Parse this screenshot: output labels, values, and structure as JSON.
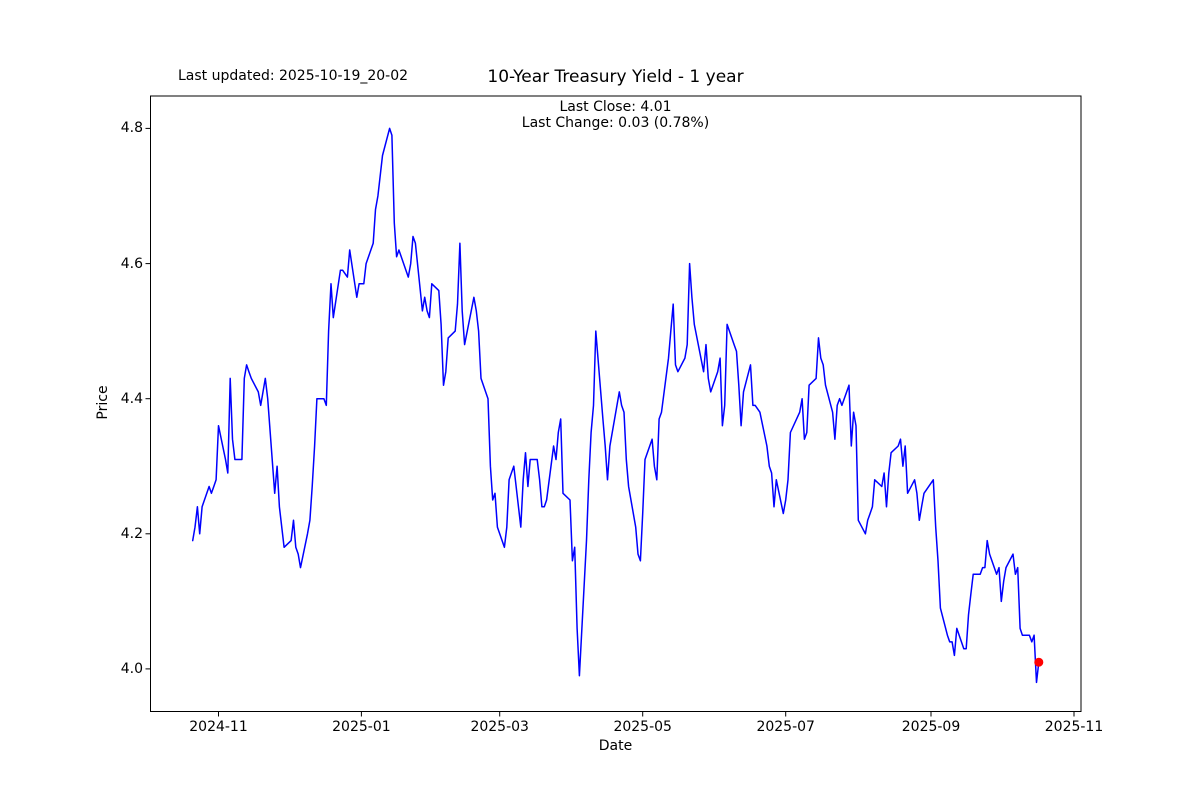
{
  "figure": {
    "last_updated": "Last updated: 2025-10-19_20-02",
    "title": "10-Year Treasury Yield - 1 year",
    "annotation": {
      "line1": "Last Close: 4.01",
      "line2": "Last Change: 0.03 (0.78%)"
    }
  },
  "chart_data": {
    "type": "line",
    "title": "10-Year Treasury Yield - 1 year",
    "xlabel": "Date",
    "ylabel": "Price",
    "legend": "none",
    "grid": false,
    "line_color": "#0000ff",
    "marker_color": "#ff0000",
    "axis_color": "#000000",
    "xlim": [
      "2024-10-03",
      "2025-11-04"
    ],
    "ylim": [
      3.937,
      4.848
    ],
    "x_ticks": [
      {
        "label": "2024-11",
        "date": "2024-11-01"
      },
      {
        "label": "2025-01",
        "date": "2025-01-01"
      },
      {
        "label": "2025-03",
        "date": "2025-03-01"
      },
      {
        "label": "2025-05",
        "date": "2025-05-01"
      },
      {
        "label": "2025-07",
        "date": "2025-07-01"
      },
      {
        "label": "2025-09",
        "date": "2025-09-01"
      },
      {
        "label": "2025-11",
        "date": "2025-11-01"
      }
    ],
    "y_ticks": [
      {
        "label": "4.0",
        "value": 4.0
      },
      {
        "label": "4.2",
        "value": 4.2
      },
      {
        "label": "4.4",
        "value": 4.4
      },
      {
        "label": "4.6",
        "value": 4.6
      },
      {
        "label": "4.8",
        "value": 4.8
      }
    ],
    "last_point": {
      "date": "2025-10-17",
      "value": 4.01,
      "close": "4.01",
      "change": "0.03 (0.78%)"
    },
    "series": [
      {
        "name": "10-Year Treasury Yield",
        "points": [
          [
            "2024-10-21",
            4.19
          ],
          [
            "2024-10-22",
            4.21
          ],
          [
            "2024-10-23",
            4.24
          ],
          [
            "2024-10-24",
            4.2
          ],
          [
            "2024-10-25",
            4.24
          ],
          [
            "2024-10-28",
            4.27
          ],
          [
            "2024-10-29",
            4.26
          ],
          [
            "2024-10-30",
            4.27
          ],
          [
            "2024-10-31",
            4.28
          ],
          [
            "2024-11-01",
            4.36
          ],
          [
            "2024-11-04",
            4.31
          ],
          [
            "2024-11-05",
            4.29
          ],
          [
            "2024-11-06",
            4.43
          ],
          [
            "2024-11-07",
            4.34
          ],
          [
            "2024-11-08",
            4.31
          ],
          [
            "2024-11-11",
            4.31
          ],
          [
            "2024-11-12",
            4.43
          ],
          [
            "2024-11-13",
            4.45
          ],
          [
            "2024-11-14",
            4.44
          ],
          [
            "2024-11-15",
            4.43
          ],
          [
            "2024-11-18",
            4.41
          ],
          [
            "2024-11-19",
            4.39
          ],
          [
            "2024-11-20",
            4.41
          ],
          [
            "2024-11-21",
            4.43
          ],
          [
            "2024-11-22",
            4.4
          ],
          [
            "2024-11-25",
            4.26
          ],
          [
            "2024-11-26",
            4.3
          ],
          [
            "2024-11-27",
            4.24
          ],
          [
            "2024-11-29",
            4.18
          ],
          [
            "2024-12-02",
            4.19
          ],
          [
            "2024-12-03",
            4.22
          ],
          [
            "2024-12-04",
            4.18
          ],
          [
            "2024-12-05",
            4.17
          ],
          [
            "2024-12-06",
            4.15
          ],
          [
            "2024-12-09",
            4.2
          ],
          [
            "2024-12-10",
            4.22
          ],
          [
            "2024-12-11",
            4.27
          ],
          [
            "2024-12-12",
            4.33
          ],
          [
            "2024-12-13",
            4.4
          ],
          [
            "2024-12-16",
            4.4
          ],
          [
            "2024-12-17",
            4.39
          ],
          [
            "2024-12-18",
            4.5
          ],
          [
            "2024-12-19",
            4.57
          ],
          [
            "2024-12-20",
            4.52
          ],
          [
            "2024-12-23",
            4.59
          ],
          [
            "2024-12-24",
            4.59
          ],
          [
            "2024-12-26",
            4.58
          ],
          [
            "2024-12-27",
            4.62
          ],
          [
            "2024-12-30",
            4.55
          ],
          [
            "2024-12-31",
            4.57
          ],
          [
            "2025-01-02",
            4.57
          ],
          [
            "2025-01-03",
            4.6
          ],
          [
            "2025-01-06",
            4.63
          ],
          [
            "2025-01-07",
            4.68
          ],
          [
            "2025-01-08",
            4.7
          ],
          [
            "2025-01-10",
            4.76
          ],
          [
            "2025-01-13",
            4.8
          ],
          [
            "2025-01-14",
            4.79
          ],
          [
            "2025-01-15",
            4.66
          ],
          [
            "2025-01-16",
            4.61
          ],
          [
            "2025-01-17",
            4.62
          ],
          [
            "2025-01-21",
            4.58
          ],
          [
            "2025-01-22",
            4.6
          ],
          [
            "2025-01-23",
            4.64
          ],
          [
            "2025-01-24",
            4.63
          ],
          [
            "2025-01-27",
            4.53
          ],
          [
            "2025-01-28",
            4.55
          ],
          [
            "2025-01-29",
            4.53
          ],
          [
            "2025-01-30",
            4.52
          ],
          [
            "2025-01-31",
            4.57
          ],
          [
            "2025-02-03",
            4.56
          ],
          [
            "2025-02-04",
            4.51
          ],
          [
            "2025-02-05",
            4.42
          ],
          [
            "2025-02-06",
            4.44
          ],
          [
            "2025-02-07",
            4.49
          ],
          [
            "2025-02-10",
            4.5
          ],
          [
            "2025-02-11",
            4.54
          ],
          [
            "2025-02-12",
            4.63
          ],
          [
            "2025-02-13",
            4.53
          ],
          [
            "2025-02-14",
            4.48
          ],
          [
            "2025-02-18",
            4.55
          ],
          [
            "2025-02-19",
            4.53
          ],
          [
            "2025-02-20",
            4.5
          ],
          [
            "2025-02-21",
            4.43
          ],
          [
            "2025-02-24",
            4.4
          ],
          [
            "2025-02-25",
            4.3
          ],
          [
            "2025-02-26",
            4.25
          ],
          [
            "2025-02-27",
            4.26
          ],
          [
            "2025-02-28",
            4.21
          ],
          [
            "2025-03-03",
            4.18
          ],
          [
            "2025-03-04",
            4.21
          ],
          [
            "2025-03-05",
            4.28
          ],
          [
            "2025-03-06",
            4.29
          ],
          [
            "2025-03-07",
            4.3
          ],
          [
            "2025-03-10",
            4.21
          ],
          [
            "2025-03-11",
            4.28
          ],
          [
            "2025-03-12",
            4.32
          ],
          [
            "2025-03-13",
            4.27
          ],
          [
            "2025-03-14",
            4.31
          ],
          [
            "2025-03-17",
            4.31
          ],
          [
            "2025-03-18",
            4.28
          ],
          [
            "2025-03-19",
            4.24
          ],
          [
            "2025-03-20",
            4.24
          ],
          [
            "2025-03-21",
            4.25
          ],
          [
            "2025-03-24",
            4.33
          ],
          [
            "2025-03-25",
            4.31
          ],
          [
            "2025-03-26",
            4.35
          ],
          [
            "2025-03-27",
            4.37
          ],
          [
            "2025-03-28",
            4.26
          ],
          [
            "2025-03-31",
            4.25
          ],
          [
            "2025-04-01",
            4.16
          ],
          [
            "2025-04-02",
            4.18
          ],
          [
            "2025-04-03",
            4.06
          ],
          [
            "2025-04-04",
            3.99
          ],
          [
            "2025-04-07",
            4.19
          ],
          [
            "2025-04-08",
            4.28
          ],
          [
            "2025-04-09",
            4.35
          ],
          [
            "2025-04-10",
            4.39
          ],
          [
            "2025-04-11",
            4.5
          ],
          [
            "2025-04-14",
            4.37
          ],
          [
            "2025-04-15",
            4.33
          ],
          [
            "2025-04-16",
            4.28
          ],
          [
            "2025-04-17",
            4.33
          ],
          [
            "2025-04-21",
            4.41
          ],
          [
            "2025-04-22",
            4.39
          ],
          [
            "2025-04-23",
            4.38
          ],
          [
            "2025-04-24",
            4.31
          ],
          [
            "2025-04-25",
            4.27
          ],
          [
            "2025-04-28",
            4.21
          ],
          [
            "2025-04-29",
            4.17
          ],
          [
            "2025-04-30",
            4.16
          ],
          [
            "2025-05-01",
            4.23
          ],
          [
            "2025-05-02",
            4.31
          ],
          [
            "2025-05-05",
            4.34
          ],
          [
            "2025-05-06",
            4.3
          ],
          [
            "2025-05-07",
            4.28
          ],
          [
            "2025-05-08",
            4.37
          ],
          [
            "2025-05-09",
            4.38
          ],
          [
            "2025-05-12",
            4.46
          ],
          [
            "2025-05-13",
            4.5
          ],
          [
            "2025-05-14",
            4.54
          ],
          [
            "2025-05-15",
            4.45
          ],
          [
            "2025-05-16",
            4.44
          ],
          [
            "2025-05-19",
            4.46
          ],
          [
            "2025-05-20",
            4.48
          ],
          [
            "2025-05-21",
            4.6
          ],
          [
            "2025-05-22",
            4.55
          ],
          [
            "2025-05-23",
            4.51
          ],
          [
            "2025-05-27",
            4.44
          ],
          [
            "2025-05-28",
            4.48
          ],
          [
            "2025-05-29",
            4.43
          ],
          [
            "2025-05-30",
            4.41
          ],
          [
            "2025-06-02",
            4.44
          ],
          [
            "2025-06-03",
            4.46
          ],
          [
            "2025-06-04",
            4.36
          ],
          [
            "2025-06-05",
            4.39
          ],
          [
            "2025-06-06",
            4.51
          ],
          [
            "2025-06-09",
            4.48
          ],
          [
            "2025-06-10",
            4.47
          ],
          [
            "2025-06-11",
            4.42
          ],
          [
            "2025-06-12",
            4.36
          ],
          [
            "2025-06-13",
            4.41
          ],
          [
            "2025-06-16",
            4.45
          ],
          [
            "2025-06-17",
            4.39
          ],
          [
            "2025-06-18",
            4.39
          ],
          [
            "2025-06-20",
            4.38
          ],
          [
            "2025-06-23",
            4.33
          ],
          [
            "2025-06-24",
            4.3
          ],
          [
            "2025-06-25",
            4.29
          ],
          [
            "2025-06-26",
            4.24
          ],
          [
            "2025-06-27",
            4.28
          ],
          [
            "2025-06-30",
            4.23
          ],
          [
            "2025-07-01",
            4.25
          ],
          [
            "2025-07-02",
            4.28
          ],
          [
            "2025-07-03",
            4.35
          ],
          [
            "2025-07-07",
            4.38
          ],
          [
            "2025-07-08",
            4.4
          ],
          [
            "2025-07-09",
            4.34
          ],
          [
            "2025-07-10",
            4.35
          ],
          [
            "2025-07-11",
            4.42
          ],
          [
            "2025-07-14",
            4.43
          ],
          [
            "2025-07-15",
            4.49
          ],
          [
            "2025-07-16",
            4.46
          ],
          [
            "2025-07-17",
            4.45
          ],
          [
            "2025-07-18",
            4.42
          ],
          [
            "2025-07-21",
            4.38
          ],
          [
            "2025-07-22",
            4.34
          ],
          [
            "2025-07-23",
            4.39
          ],
          [
            "2025-07-24",
            4.4
          ],
          [
            "2025-07-25",
            4.39
          ],
          [
            "2025-07-28",
            4.42
          ],
          [
            "2025-07-29",
            4.33
          ],
          [
            "2025-07-30",
            4.38
          ],
          [
            "2025-07-31",
            4.36
          ],
          [
            "2025-08-01",
            4.22
          ],
          [
            "2025-08-04",
            4.2
          ],
          [
            "2025-08-05",
            4.22
          ],
          [
            "2025-08-06",
            4.23
          ],
          [
            "2025-08-07",
            4.24
          ],
          [
            "2025-08-08",
            4.28
          ],
          [
            "2025-08-11",
            4.27
          ],
          [
            "2025-08-12",
            4.29
          ],
          [
            "2025-08-13",
            4.24
          ],
          [
            "2025-08-14",
            4.29
          ],
          [
            "2025-08-15",
            4.32
          ],
          [
            "2025-08-18",
            4.33
          ],
          [
            "2025-08-19",
            4.34
          ],
          [
            "2025-08-20",
            4.3
          ],
          [
            "2025-08-21",
            4.33
          ],
          [
            "2025-08-22",
            4.26
          ],
          [
            "2025-08-25",
            4.28
          ],
          [
            "2025-08-26",
            4.26
          ],
          [
            "2025-08-27",
            4.22
          ],
          [
            "2025-08-28",
            4.24
          ],
          [
            "2025-08-29",
            4.26
          ],
          [
            "2025-09-02",
            4.28
          ],
          [
            "2025-09-03",
            4.21
          ],
          [
            "2025-09-04",
            4.16
          ],
          [
            "2025-09-05",
            4.09
          ],
          [
            "2025-09-08",
            4.05
          ],
          [
            "2025-09-09",
            4.04
          ],
          [
            "2025-09-10",
            4.04
          ],
          [
            "2025-09-11",
            4.02
          ],
          [
            "2025-09-12",
            4.06
          ],
          [
            "2025-09-15",
            4.03
          ],
          [
            "2025-09-16",
            4.03
          ],
          [
            "2025-09-17",
            4.08
          ],
          [
            "2025-09-18",
            4.11
          ],
          [
            "2025-09-19",
            4.14
          ],
          [
            "2025-09-22",
            4.14
          ],
          [
            "2025-09-23",
            4.15
          ],
          [
            "2025-09-24",
            4.15
          ],
          [
            "2025-09-25",
            4.19
          ],
          [
            "2025-09-26",
            4.17
          ],
          [
            "2025-09-29",
            4.14
          ],
          [
            "2025-09-30",
            4.15
          ],
          [
            "2025-10-01",
            4.1
          ],
          [
            "2025-10-02",
            4.13
          ],
          [
            "2025-10-03",
            4.15
          ],
          [
            "2025-10-06",
            4.17
          ],
          [
            "2025-10-07",
            4.14
          ],
          [
            "2025-10-08",
            4.15
          ],
          [
            "2025-10-09",
            4.06
          ],
          [
            "2025-10-10",
            4.05
          ],
          [
            "2025-10-13",
            4.05
          ],
          [
            "2025-10-14",
            4.04
          ],
          [
            "2025-10-15",
            4.05
          ],
          [
            "2025-10-16",
            3.98
          ],
          [
            "2025-10-17",
            4.01
          ]
        ]
      }
    ]
  }
}
